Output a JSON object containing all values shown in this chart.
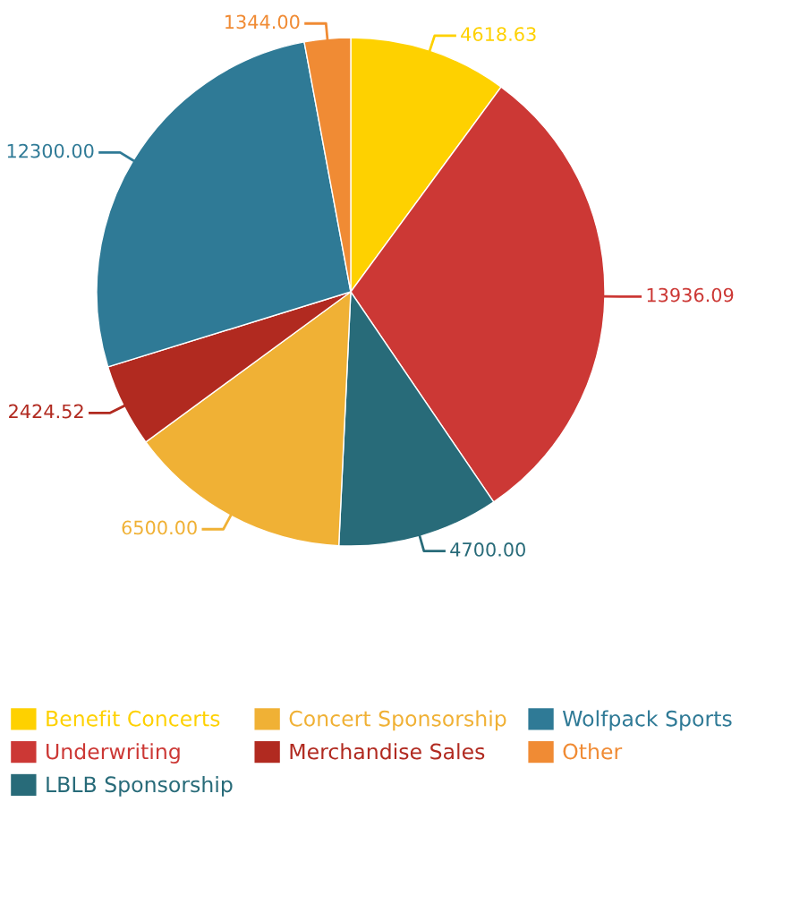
{
  "chart_data": {
    "type": "pie",
    "categories": [
      "Benefit Concerts",
      "Underwriting",
      "LBLB Sponsorship",
      "Concert Sponsorship",
      "Merchandise Sales",
      "Wolfpack Sports",
      "Other"
    ],
    "values": [
      4618.63,
      13936.09,
      4700.0,
      6500.0,
      2424.52,
      12300.0,
      1344.0
    ],
    "value_labels": [
      "4618.63",
      "13936.09",
      "4700.00",
      "6500.00",
      "2424.52",
      "12300.00",
      "1344.00"
    ],
    "colors": [
      "#fed100",
      "#cc3835",
      "#286b79",
      "#f0b135",
      "#b12a20",
      "#2f7a96",
      "#f08b34"
    ],
    "legend": "bottom"
  }
}
